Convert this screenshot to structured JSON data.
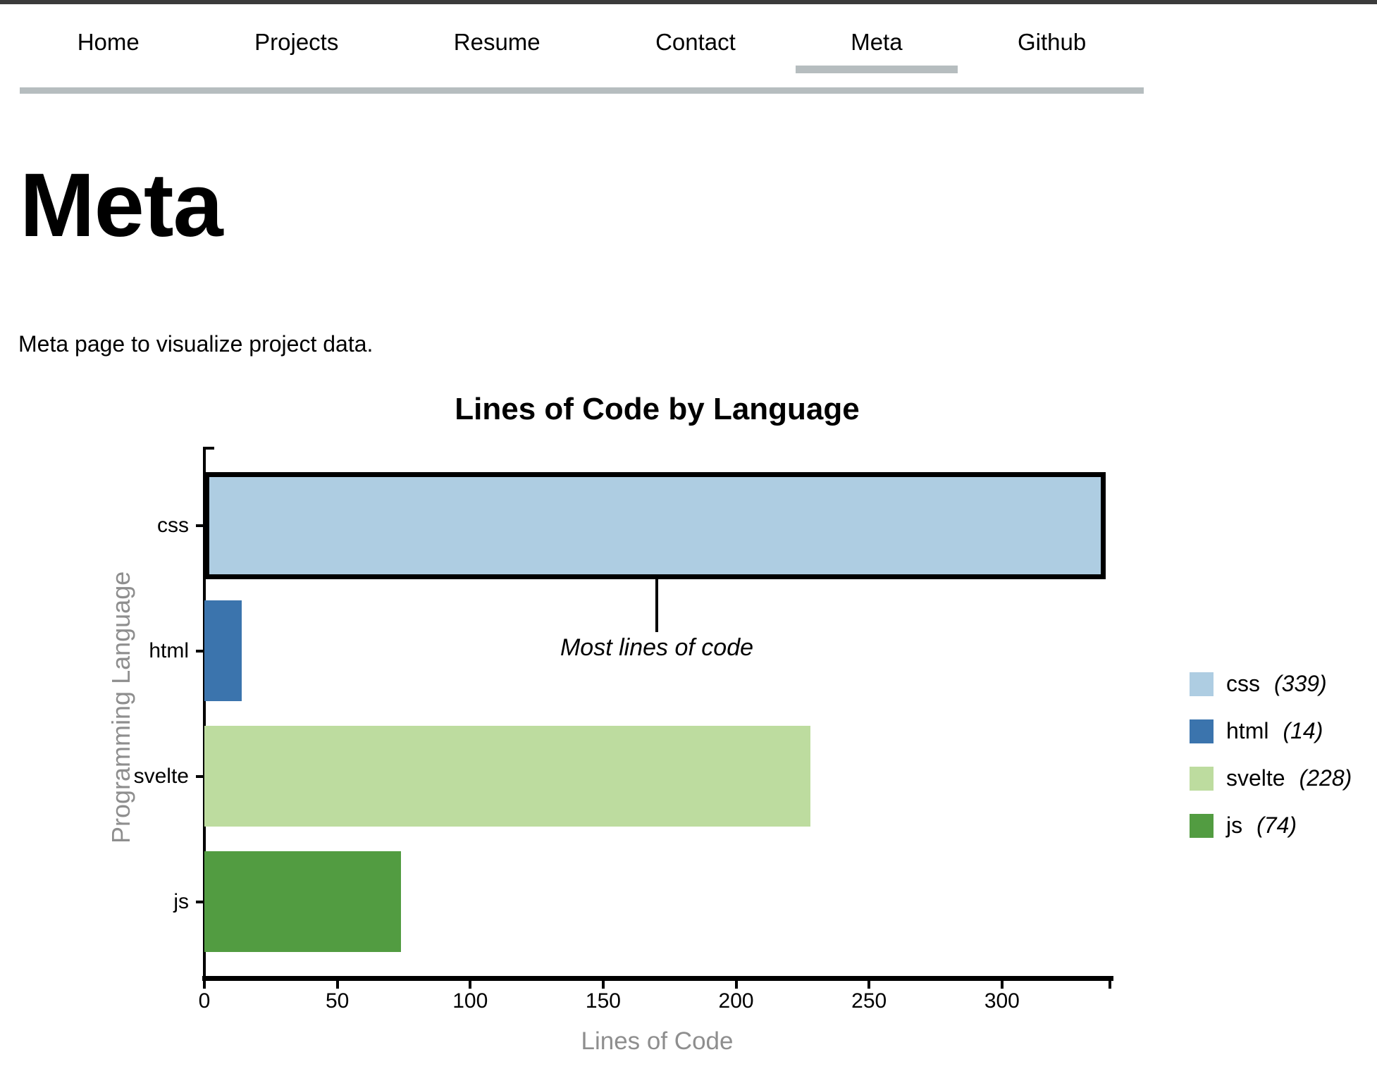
{
  "nav": {
    "active_indicator_color": "#b6bdbf",
    "items": [
      {
        "label": "Home",
        "active": false
      },
      {
        "label": "Projects",
        "active": false
      },
      {
        "label": "Resume",
        "active": false
      },
      {
        "label": "Contact",
        "active": false
      },
      {
        "label": "Meta",
        "active": true
      },
      {
        "label": "Github",
        "active": false
      }
    ]
  },
  "page": {
    "title": "Meta",
    "description": "Meta page to visualize project data."
  },
  "chart_data": {
    "type": "bar",
    "orientation": "horizontal",
    "title": "Lines of Code by Language",
    "xlabel": "Lines of Code",
    "ylabel": "Programming Language",
    "categories": [
      "css",
      "html",
      "svelte",
      "js"
    ],
    "values": [
      339,
      14,
      228,
      74
    ],
    "colors": [
      "#aecde2",
      "#3b74ad",
      "#bddc9f",
      "#529c41"
    ],
    "highlighted_category": "css",
    "highlight_border_color": "#000000",
    "x_ticks": [
      0,
      50,
      100,
      150,
      200,
      250,
      300
    ],
    "xlim": [
      0,
      339
    ],
    "grid": false,
    "annotation": {
      "text": "Most lines of code",
      "target_category": "css"
    },
    "legend": {
      "position": "right",
      "entries": [
        {
          "label": "css",
          "count": "(339)"
        },
        {
          "label": "html",
          "count": "(14)"
        },
        {
          "label": "svelte",
          "count": "(228)"
        },
        {
          "label": "js",
          "count": "(74)"
        }
      ]
    }
  }
}
